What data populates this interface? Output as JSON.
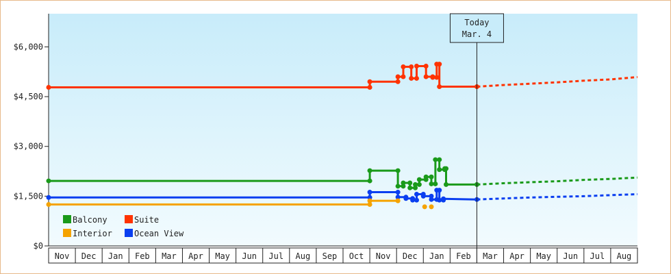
{
  "chart_data": {
    "type": "line",
    "y_ticks": [
      "$0",
      "$1,500",
      "$3,000",
      "$4,500",
      "$6,000"
    ],
    "y_tick_values": [
      0,
      1500,
      3000,
      4500,
      6000
    ],
    "ylim": [
      0,
      7000
    ],
    "x_labels": [
      "Nov",
      "Dec",
      "Jan",
      "Feb",
      "Mar",
      "Apr",
      "May",
      "Jun",
      "Jul",
      "Aug",
      "Sep",
      "Oct",
      "Nov",
      "Dec",
      "Jan",
      "Feb",
      "Mar",
      "Apr",
      "May",
      "Jun",
      "Jul",
      "Aug"
    ],
    "today": {
      "line1": "Today",
      "line2": "Mar. 4",
      "month_index": 16
    },
    "grid": false,
    "legend_position": "bottom-left",
    "legend": [
      {
        "label": "Balcony",
        "color": "#1a9a1a"
      },
      {
        "label": "Suite",
        "color": "#ff3300"
      },
      {
        "label": "Interior",
        "color": "#f5a300"
      },
      {
        "label": "Ocean View",
        "color": "#0a3ff0"
      }
    ],
    "series": [
      {
        "name": "Suite",
        "color": "#ff3300",
        "actual": [
          [
            0,
            4780
          ],
          [
            12,
            4780
          ],
          [
            12,
            4950
          ],
          [
            13.05,
            4950
          ],
          [
            13.05,
            5100
          ],
          [
            13.25,
            5100
          ],
          [
            13.25,
            5400
          ],
          [
            13.55,
            5400
          ],
          [
            13.55,
            5050
          ],
          [
            13.75,
            5050
          ],
          [
            13.75,
            5420
          ],
          [
            14.1,
            5420
          ],
          [
            14.1,
            5100
          ],
          [
            14.35,
            5100
          ],
          [
            14.35,
            5080
          ],
          [
            14.5,
            5080
          ],
          [
            14.5,
            5480
          ],
          [
            14.6,
            5480
          ],
          [
            14.6,
            4800
          ],
          [
            16,
            4800
          ]
        ],
        "forecast": [
          [
            16,
            4800
          ],
          [
            17,
            4850
          ],
          [
            18,
            4890
          ],
          [
            19,
            4930
          ],
          [
            20,
            4980
          ],
          [
            21,
            5020
          ],
          [
            22,
            5090
          ]
        ]
      },
      {
        "name": "Balcony",
        "color": "#1a9a1a",
        "actual": [
          [
            0,
            1960
          ],
          [
            12,
            1960
          ],
          [
            12,
            2270
          ],
          [
            13.05,
            2270
          ],
          [
            13.05,
            1800
          ],
          [
            13.25,
            1800
          ],
          [
            13.25,
            1900
          ],
          [
            13.5,
            1900
          ],
          [
            13.5,
            1750
          ],
          [
            13.7,
            1750
          ],
          [
            13.7,
            1850
          ],
          [
            13.85,
            1850
          ],
          [
            13.85,
            2000
          ],
          [
            14.1,
            2000
          ],
          [
            14.1,
            2080
          ],
          [
            14.3,
            2080
          ],
          [
            14.3,
            1870
          ],
          [
            14.45,
            1870
          ],
          [
            14.45,
            2600
          ],
          [
            14.6,
            2600
          ],
          [
            14.6,
            2300
          ],
          [
            14.8,
            2300
          ],
          [
            14.8,
            2330
          ],
          [
            14.85,
            2330
          ],
          [
            14.85,
            1850
          ],
          [
            16,
            1850
          ]
        ],
        "forecast": [
          [
            16,
            1850
          ],
          [
            17,
            1890
          ],
          [
            18,
            1920
          ],
          [
            19,
            1950
          ],
          [
            20,
            1990
          ],
          [
            21,
            2020
          ],
          [
            22,
            2060
          ]
        ]
      },
      {
        "name": "Ocean View",
        "color": "#0a3ff0",
        "actual": [
          [
            0,
            1460
          ],
          [
            12,
            1460
          ],
          [
            12,
            1620
          ],
          [
            13.05,
            1620
          ],
          [
            13.05,
            1470
          ],
          [
            13.35,
            1470
          ],
          [
            13.35,
            1430
          ],
          [
            13.6,
            1430
          ],
          [
            13.6,
            1380
          ],
          [
            13.75,
            1380
          ],
          [
            13.75,
            1560
          ],
          [
            14.0,
            1560
          ],
          [
            14.0,
            1500
          ],
          [
            14.3,
            1500
          ],
          [
            14.3,
            1400
          ],
          [
            14.5,
            1400
          ],
          [
            14.5,
            1680
          ],
          [
            14.6,
            1680
          ],
          [
            14.6,
            1380
          ],
          [
            14.75,
            1380
          ],
          [
            14.75,
            1420
          ],
          [
            16,
            1400
          ]
        ],
        "forecast": [
          [
            16,
            1400
          ],
          [
            17,
            1430
          ],
          [
            18,
            1460
          ],
          [
            19,
            1480
          ],
          [
            20,
            1500
          ],
          [
            21,
            1530
          ],
          [
            22,
            1560
          ]
        ]
      },
      {
        "name": "Interior",
        "color": "#f5a300",
        "actual": [
          [
            0,
            1250
          ],
          [
            12,
            1250
          ],
          [
            12,
            1360
          ],
          [
            13.05,
            1360
          ]
        ],
        "extra_points": [
          [
            14.05,
            1180
          ],
          [
            14.3,
            1180
          ]
        ]
      }
    ]
  }
}
